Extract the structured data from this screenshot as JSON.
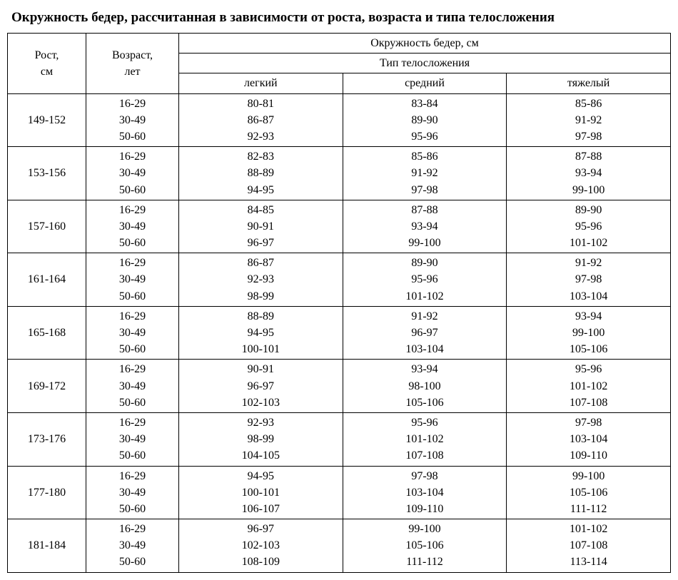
{
  "title": "Окружность бедер, рассчитанная в зависимости от роста, возраста и типа телосложения",
  "headers": {
    "height": "Рост,\nсм",
    "age": "Возраст,\nлет",
    "main": "Окружность бедер, см",
    "sub": "Тип телосложения",
    "light": "легкий",
    "medium": "средний",
    "heavy": "тяжелый"
  },
  "age_labels": [
    "16-29",
    "30-49",
    "50-60"
  ],
  "rows": [
    {
      "height": "149-152",
      "light": [
        "80-81",
        "86-87",
        "92-93"
      ],
      "medium": [
        "83-84",
        "89-90",
        "95-96"
      ],
      "heavy": [
        "85-86",
        "91-92",
        "97-98"
      ]
    },
    {
      "height": "153-156",
      "light": [
        "82-83",
        "88-89",
        "94-95"
      ],
      "medium": [
        "85-86",
        "91-92",
        "97-98"
      ],
      "heavy": [
        "87-88",
        "93-94",
        "99-100"
      ]
    },
    {
      "height": "157-160",
      "light": [
        "84-85",
        "90-91",
        "96-97"
      ],
      "medium": [
        "87-88",
        "93-94",
        "99-100"
      ],
      "heavy": [
        "89-90",
        "95-96",
        "101-102"
      ]
    },
    {
      "height": "161-164",
      "light": [
        "86-87",
        "92-93",
        "98-99"
      ],
      "medium": [
        "89-90",
        "95-96",
        "101-102"
      ],
      "heavy": [
        "91-92",
        "97-98",
        "103-104"
      ]
    },
    {
      "height": "165-168",
      "light": [
        "88-89",
        "94-95",
        "100-101"
      ],
      "medium": [
        "91-92",
        "96-97",
        "103-104"
      ],
      "heavy": [
        "93-94",
        "99-100",
        "105-106"
      ]
    },
    {
      "height": "169-172",
      "light": [
        "90-91",
        "96-97",
        "102-103"
      ],
      "medium": [
        "93-94",
        "98-100",
        "105-106"
      ],
      "heavy": [
        "95-96",
        "101-102",
        "107-108"
      ]
    },
    {
      "height": "173-176",
      "light": [
        "92-93",
        "98-99",
        "104-105"
      ],
      "medium": [
        "95-96",
        "101-102",
        "107-108"
      ],
      "heavy": [
        "97-98",
        "103-104",
        "109-110"
      ]
    },
    {
      "height": "177-180",
      "light": [
        "94-95",
        "100-101",
        "106-107"
      ],
      "medium": [
        "97-98",
        "103-104",
        "109-110"
      ],
      "heavy": [
        "99-100",
        "105-106",
        "111-112"
      ]
    },
    {
      "height": "181-184",
      "light": [
        "96-97",
        "102-103",
        "108-109"
      ],
      "medium": [
        "99-100",
        "105-106",
        "111-112"
      ],
      "heavy": [
        "101-102",
        "107-108",
        "113-114"
      ]
    }
  ],
  "style": {
    "background_color": "#ffffff",
    "text_color": "#000000",
    "border_color": "#000000",
    "title_fontsize": 19,
    "cell_fontsize": 16,
    "font_family": "Times New Roman"
  }
}
